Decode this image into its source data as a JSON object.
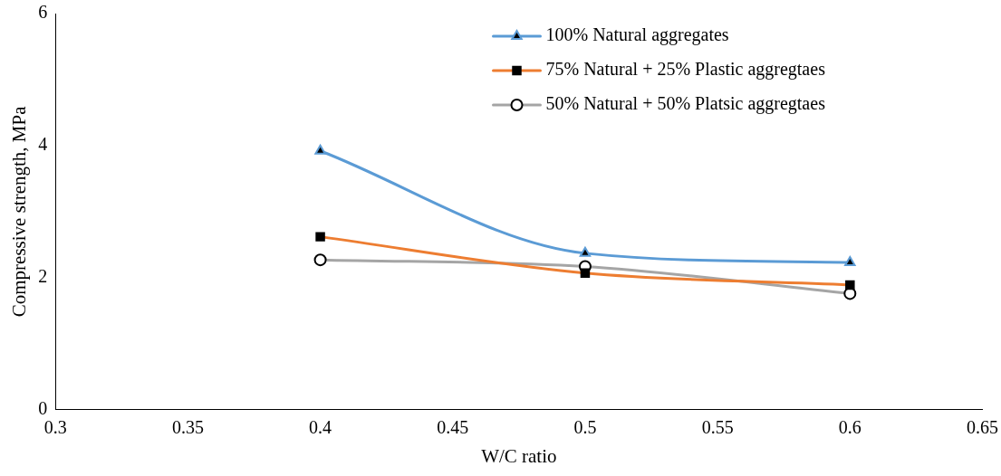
{
  "chart_data": {
    "type": "line",
    "xlabel": "W/C ratio",
    "ylabel": "Compressive strength, MPa",
    "x": [
      0.4,
      0.5,
      0.6
    ],
    "series": [
      {
        "name": "100% Natural aggregates",
        "color": "#5b9bd5",
        "values": [
          3.92,
          2.37,
          2.23
        ],
        "marker": "triangle"
      },
      {
        "name": "75% Natural + 25% Plastic aggregtaes",
        "color": "#ed7d31",
        "values": [
          2.62,
          2.07,
          1.89
        ],
        "marker": "square"
      },
      {
        "name": "50% Natural + 50% Platsic aggregtaes",
        "color": "#a5a5a5",
        "values": [
          2.27,
          2.17,
          1.76
        ],
        "marker": "circle"
      }
    ],
    "xlim": [
      0.3,
      0.65
    ],
    "xticks": [
      0.3,
      0.35,
      0.4,
      0.45,
      0.5,
      0.55,
      0.6,
      0.65
    ],
    "ylim": [
      0,
      6
    ],
    "yticks": [
      0,
      2,
      4,
      6
    ],
    "grid": false,
    "legend": "top right"
  }
}
